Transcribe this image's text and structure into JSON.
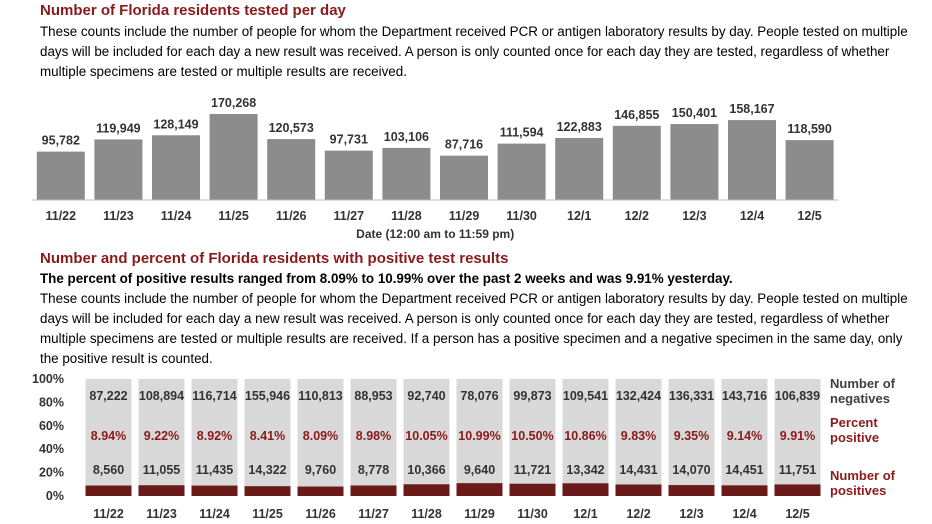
{
  "colors": {
    "heading": "#8b1a1a",
    "bar_gray": "#8c8c8c",
    "bar_light": "#d9d9d9",
    "bar_dark": "#6b1a1a",
    "percent_text": "#8b1a1a"
  },
  "section1": {
    "title": "Number of Florida residents tested per day",
    "description": "These counts include the number of people for whom the Department received PCR or antigen laboratory results by day. People tested on multiple days will be included for each day a new result was received. A person is only counted once for each day they are tested, regardless of whether multiple specimens are tested or multiple results are received."
  },
  "section2": {
    "title": "Number and percent of Florida residents with positive test results",
    "summary": "The percent of positive results ranged from 8.09% to 10.99% over the past 2 weeks and was 9.91% yesterday.",
    "description": "These counts include the number of people for whom the Department received PCR or antigen laboratory results by day. People tested on multiple days will be included for each day a new result was received. A person is only counted once for each day they are tested, regardless of whether multiple specimens are tested or multiple results are received. If a person has a positive specimen and a negative specimen in the same day, only the positive result is counted."
  },
  "chart_data": [
    {
      "type": "bar",
      "categories": [
        "11/22",
        "11/23",
        "11/24",
        "11/25",
        "11/26",
        "11/27",
        "11/28",
        "11/29",
        "11/30",
        "12/1",
        "12/2",
        "12/3",
        "12/4",
        "12/5"
      ],
      "values": [
        95782,
        119949,
        128149,
        170268,
        120573,
        97731,
        103106,
        87716,
        111594,
        122883,
        146855,
        150401,
        158167,
        118590
      ],
      "value_labels": [
        "95,782",
        "119,949",
        "128,149",
        "170,268",
        "120,573",
        "97,731",
        "103,106",
        "87,716",
        "111,594",
        "122,883",
        "146,855",
        "150,401",
        "158,167",
        "118,590"
      ],
      "xlabel": "Date (12:00 am to 11:59 pm)",
      "ylim": [
        0,
        170268
      ]
    },
    {
      "type": "bar",
      "stacked": "percent",
      "categories": [
        "11/22",
        "11/23",
        "11/24",
        "11/25",
        "11/26",
        "11/27",
        "11/28",
        "11/29",
        "11/30",
        "12/1",
        "12/2",
        "12/3",
        "12/4",
        "12/5"
      ],
      "y_ticks": [
        "0%",
        "20%",
        "40%",
        "60%",
        "80%",
        "100%"
      ],
      "series": [
        {
          "name": "Number of positives",
          "values": [
            8560,
            11055,
            11435,
            14322,
            9760,
            8778,
            10366,
            9640,
            11721,
            13342,
            14431,
            14070,
            14451,
            11751
          ],
          "value_labels": [
            "8,560",
            "11,055",
            "11,435",
            "14,322",
            "9,760",
            "8,778",
            "10,366",
            "9,640",
            "11,721",
            "13,342",
            "14,431",
            "14,070",
            "14,451",
            "11,751"
          ]
        },
        {
          "name": "Number of negatives",
          "values": [
            87222,
            108894,
            116714,
            155946,
            110813,
            88953,
            92740,
            78076,
            99873,
            109541,
            132424,
            136331,
            143716,
            106839
          ],
          "value_labels": [
            "87,222",
            "108,894",
            "116,714",
            "155,946",
            "110,813",
            "88,953",
            "92,740",
            "78,076",
            "99,873",
            "109,541",
            "132,424",
            "136,331",
            "143,716",
            "106,839"
          ]
        }
      ],
      "percent_positive": [
        8.94,
        9.22,
        8.92,
        8.41,
        8.09,
        8.98,
        10.05,
        10.99,
        10.5,
        10.86,
        9.83,
        9.35,
        9.14,
        9.91
      ],
      "percent_labels": [
        "8.94%",
        "9.22%",
        "8.92%",
        "8.41%",
        "8.09%",
        "8.98%",
        "10.05%",
        "10.99%",
        "10.50%",
        "10.86%",
        "9.83%",
        "9.35%",
        "9.14%",
        "9.91%"
      ],
      "legend": [
        {
          "line1": "Number of",
          "line2": "negatives"
        },
        {
          "line1": "Percent",
          "line2": "positive"
        },
        {
          "line1": "Number of",
          "line2": "positives"
        }
      ],
      "legend_placement": "right",
      "ylim": [
        0,
        100
      ]
    }
  ]
}
